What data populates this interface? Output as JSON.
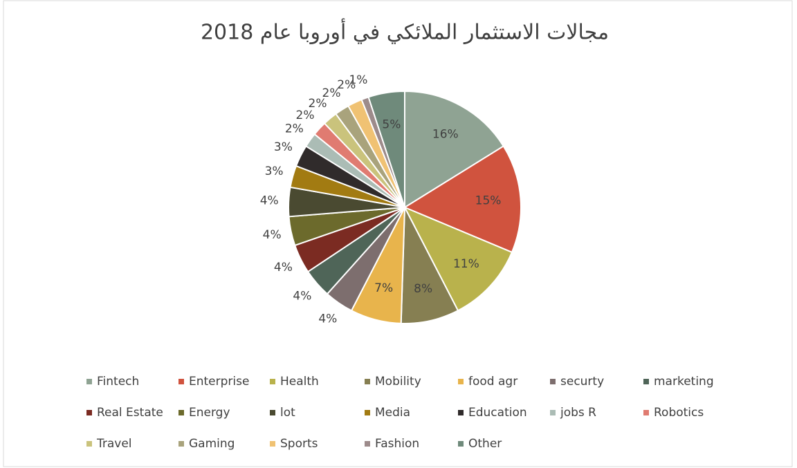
{
  "chart_data": {
    "type": "pie",
    "title": "مجالات الاستثمار الملائكي في أوروبا عام 2018",
    "categories": [
      "Fintech",
      "Enterprise",
      "Health",
      "Mobility",
      "food agr",
      "securty",
      "marketing",
      "Real Estate",
      "Energy",
      "lot",
      "Media",
      "Education",
      "jobs R",
      "Robotics",
      "Travel",
      "Gaming",
      "Sports",
      "Fashion",
      "Other"
    ],
    "values": [
      16,
      15,
      11,
      8,
      7,
      4,
      4,
      4,
      4,
      4,
      3,
      3,
      2,
      2,
      2,
      2,
      2,
      1,
      5
    ],
    "value_labels": [
      "16%",
      "15%",
      "11%",
      "8%",
      "7%",
      "4%",
      "4%",
      "4%",
      "4%",
      "4%",
      "3%",
      "3%",
      "2%",
      "2%",
      "2%",
      "2%",
      "2%",
      "1%",
      "5%"
    ],
    "colors": [
      "#8fa393",
      "#d0533e",
      "#b9b24c",
      "#867f52",
      "#e8b44c",
      "#7d6e6e",
      "#4f6558",
      "#7b2b22",
      "#6c6a2c",
      "#4a4a31",
      "#a27b12",
      "#302b2b",
      "#abbcb5",
      "#e07b71",
      "#cac37c",
      "#a9a37c",
      "#f0c273",
      "#9d8b8b",
      "#6f8a7b"
    ],
    "legend": "bottom"
  }
}
